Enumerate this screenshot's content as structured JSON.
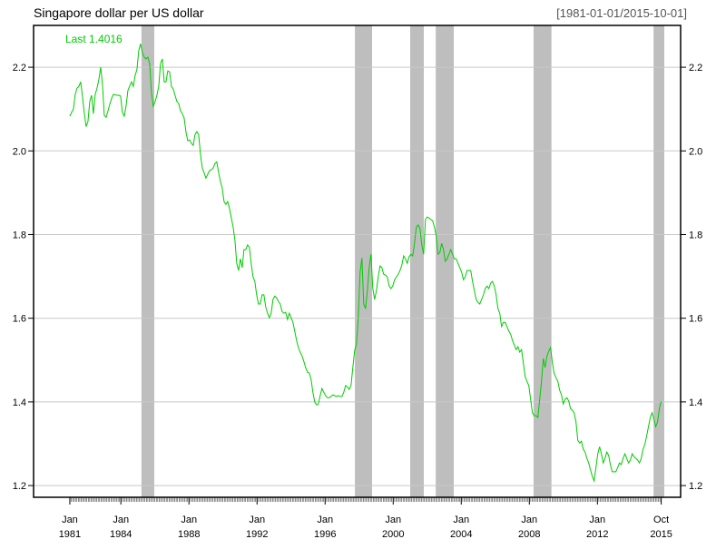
{
  "chart_data": {
    "type": "line",
    "title": "Singapore dollar per US dollar",
    "date_range": "[1981-01-01/2015-10-01]",
    "last_label": "Last 1.4016",
    "xlabel": "",
    "ylabel": "",
    "xlim": [
      1978.87,
      2016.89
    ],
    "ylim": [
      1.172,
      2.3
    ],
    "grid": true,
    "y_ticks": [
      1.2,
      1.4,
      1.6,
      1.8,
      2.0,
      2.2
    ],
    "y_tick_labels": [
      "1.2",
      "1.4",
      "1.6",
      "1.8",
      "2.0",
      "2.2"
    ],
    "x_ticks": [
      {
        "value": 1981.0,
        "line1": "Jan",
        "line2": "1981"
      },
      {
        "value": 1984.0,
        "line1": "Jan",
        "line2": "1984"
      },
      {
        "value": 1988.0,
        "line1": "Jan",
        "line2": "1988"
      },
      {
        "value": 1992.0,
        "line1": "Jan",
        "line2": "1992"
      },
      {
        "value": 1996.0,
        "line1": "Jan",
        "line2": "1996"
      },
      {
        "value": 2000.0,
        "line1": "Jan",
        "line2": "2000"
      },
      {
        "value": 2004.0,
        "line1": "Jan",
        "line2": "2004"
      },
      {
        "value": 2008.0,
        "line1": "Jan",
        "line2": "2008"
      },
      {
        "value": 2012.0,
        "line1": "Jan",
        "line2": "2012"
      },
      {
        "value": 2015.75,
        "line1": "Oct",
        "line2": "2015"
      }
    ],
    "recessions": [
      [
        1985.21,
        1985.96
      ],
      [
        1997.75,
        1998.76
      ],
      [
        2001.0,
        2001.8
      ],
      [
        2002.5,
        2003.56
      ],
      [
        2008.25,
        2009.3
      ],
      [
        2015.3,
        2015.93
      ]
    ],
    "colors": {
      "line": "#00cc00",
      "recession": "#bebebe",
      "grid": "#c8c8c8",
      "axis": "#000000"
    },
    "series": [
      {
        "name": "Singapore dollar per US dollar",
        "x_range": [
          1981.0,
          2015.75
        ],
        "values": [
          2.083,
          2.092,
          2.1,
          2.135,
          2.15,
          2.154,
          2.165,
          2.13,
          2.09,
          2.058,
          2.07,
          2.118,
          2.133,
          2.089,
          2.135,
          2.15,
          2.17,
          2.2,
          2.16,
          2.085,
          2.08,
          2.095,
          2.111,
          2.125,
          2.135,
          2.134,
          2.133,
          2.133,
          2.131,
          2.092,
          2.083,
          2.107,
          2.144,
          2.155,
          2.165,
          2.154,
          2.18,
          2.195,
          2.24,
          2.256,
          2.235,
          2.224,
          2.22,
          2.224,
          2.209,
          2.139,
          2.107,
          2.118,
          2.133,
          2.154,
          2.209,
          2.22,
          2.165,
          2.165,
          2.191,
          2.189,
          2.154,
          2.148,
          2.133,
          2.118,
          2.113,
          2.096,
          2.089,
          2.079,
          2.046,
          2.024,
          2.026,
          2.018,
          2.013,
          2.039,
          2.046,
          2.039,
          1.992,
          1.959,
          1.948,
          1.935,
          1.944,
          1.953,
          1.955,
          1.959,
          1.97,
          1.974,
          1.948,
          1.927,
          1.911,
          1.879,
          1.872,
          1.879,
          1.862,
          1.84,
          1.818,
          1.786,
          1.731,
          1.714,
          1.742,
          1.721,
          1.764,
          1.764,
          1.775,
          1.77,
          1.731,
          1.699,
          1.688,
          1.656,
          1.634,
          1.634,
          1.656,
          1.656,
          1.627,
          1.612,
          1.601,
          1.612,
          1.645,
          1.653,
          1.649,
          1.64,
          1.634,
          1.616,
          1.612,
          1.614,
          1.597,
          1.612,
          1.601,
          1.59,
          1.569,
          1.547,
          1.53,
          1.519,
          1.51,
          1.497,
          1.482,
          1.471,
          1.469,
          1.454,
          1.423,
          1.4,
          1.393,
          1.395,
          1.415,
          1.432,
          1.423,
          1.415,
          1.41,
          1.41,
          1.413,
          1.417,
          1.415,
          1.413,
          1.415,
          1.413,
          1.413,
          1.423,
          1.439,
          1.436,
          1.43,
          1.439,
          1.482,
          1.523,
          1.538,
          1.601,
          1.71,
          1.744,
          1.634,
          1.623,
          1.666,
          1.721,
          1.753,
          1.671,
          1.645,
          1.666,
          1.699,
          1.725,
          1.721,
          1.705,
          1.703,
          1.699,
          1.677,
          1.671,
          1.677,
          1.692,
          1.699,
          1.705,
          1.714,
          1.727,
          1.749,
          1.742,
          1.731,
          1.747,
          1.753,
          1.749,
          1.779,
          1.818,
          1.823,
          1.814,
          1.775,
          1.753,
          1.836,
          1.842,
          1.84,
          1.836,
          1.833,
          1.818,
          1.797,
          1.753,
          1.757,
          1.779,
          1.764,
          1.736,
          1.742,
          1.753,
          1.764,
          1.753,
          1.742,
          1.742,
          1.731,
          1.721,
          1.71,
          1.692,
          1.699,
          1.714,
          1.714,
          1.714,
          1.688,
          1.666,
          1.645,
          1.638,
          1.634,
          1.645,
          1.656,
          1.671,
          1.677,
          1.671,
          1.684,
          1.688,
          1.677,
          1.656,
          1.623,
          1.612,
          1.58,
          1.59,
          1.59,
          1.58,
          1.569,
          1.562,
          1.547,
          1.536,
          1.525,
          1.532,
          1.519,
          1.525,
          1.493,
          1.46,
          1.449,
          1.439,
          1.406,
          1.374,
          1.367,
          1.367,
          1.363,
          1.406,
          1.449,
          1.504,
          1.482,
          1.51,
          1.521,
          1.53,
          1.493,
          1.467,
          1.458,
          1.449,
          1.428,
          1.417,
          1.395,
          1.406,
          1.41,
          1.402,
          1.384,
          1.38,
          1.374,
          1.352,
          1.308,
          1.302,
          1.306,
          1.287,
          1.28,
          1.265,
          1.254,
          1.237,
          1.222,
          1.211,
          1.243,
          1.276,
          1.293,
          1.276,
          1.254,
          1.265,
          1.28,
          1.272,
          1.25,
          1.233,
          1.233,
          1.233,
          1.243,
          1.254,
          1.25,
          1.265,
          1.276,
          1.265,
          1.254,
          1.261,
          1.276,
          1.269,
          1.265,
          1.261,
          1.254,
          1.265,
          1.287,
          1.298,
          1.319,
          1.341,
          1.363,
          1.374,
          1.358,
          1.341,
          1.352,
          1.384,
          1.4016
        ]
      }
    ]
  }
}
